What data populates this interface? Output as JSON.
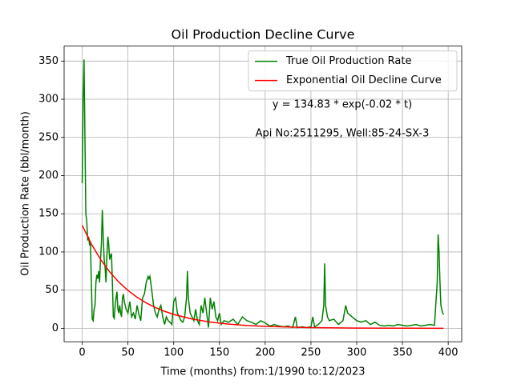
{
  "chart_data": {
    "type": "line",
    "title": "Oil Production Decline Curve",
    "xlabel": "Time (months) from:1/1990 to:12/2023",
    "ylabel": "Oil Production Rate (bbl/month)",
    "xlim": [
      -19.75,
      414.75
    ],
    "xticks": [
      0,
      50,
      100,
      150,
      200,
      250,
      300,
      350,
      400
    ],
    "ylim": [
      -17.6,
      369.6
    ],
    "yticks": [
      0,
      50,
      100,
      150,
      200,
      250,
      300,
      350
    ],
    "grid": true,
    "legend": "upper right",
    "annotations": [
      "y = 134.83 * exp(-0.02 * t)",
      "Api No:2511295, Well:85-24-SX-3"
    ],
    "series": [
      {
        "name": "True Oil Production Rate",
        "color": "#008000",
        "x": [
          0,
          1,
          2,
          3,
          4,
          5,
          6,
          7,
          8,
          9,
          10,
          11,
          12,
          13,
          14,
          15,
          16,
          17,
          18,
          19,
          20,
          21,
          22,
          23,
          24,
          25,
          26,
          27,
          28,
          29,
          30,
          31,
          32,
          33,
          34,
          35,
          36,
          37,
          38,
          39,
          40,
          41,
          42,
          43,
          44,
          45,
          46,
          47,
          48,
          50,
          52,
          54,
          56,
          58,
          60,
          62,
          64,
          66,
          68,
          70,
          72,
          73,
          74,
          76,
          78,
          80,
          82,
          84,
          86,
          88,
          90,
          92,
          94,
          96,
          98,
          100,
          102,
          104,
          106,
          108,
          110,
          112,
          114,
          115,
          116,
          118,
          120,
          122,
          124,
          126,
          128,
          130,
          132,
          134,
          136,
          138,
          140,
          142,
          144,
          146,
          148,
          150,
          152,
          155,
          160,
          165,
          170,
          175,
          180,
          185,
          190,
          195,
          200,
          205,
          210,
          215,
          220,
          225,
          230,
          233,
          235,
          240,
          245,
          250,
          252,
          254,
          258,
          262,
          264,
          265,
          266,
          268,
          270,
          275,
          280,
          285,
          288,
          290,
          295,
          300,
          305,
          310,
          315,
          320,
          325,
          330,
          335,
          340,
          345,
          350,
          355,
          360,
          365,
          370,
          375,
          380,
          385,
          388,
          389,
          390,
          391,
          392,
          394,
          395
        ],
        "values": [
          190,
          300,
          352,
          250,
          150,
          140,
          115,
          120,
          110,
          112,
          60,
          12,
          10,
          25,
          30,
          60,
          70,
          65,
          75,
          60,
          90,
          110,
          155,
          120,
          90,
          80,
          60,
          95,
          120,
          110,
          90,
          95,
          98,
          60,
          15,
          13,
          30,
          40,
          48,
          25,
          20,
          30,
          20,
          15,
          40,
          45,
          35,
          30,
          25,
          20,
          35,
          15,
          20,
          12,
          30,
          18,
          10,
          40,
          45,
          60,
          68,
          65,
          68,
          50,
          30,
          20,
          15,
          25,
          30,
          15,
          5,
          15,
          10,
          8,
          5,
          35,
          40,
          20,
          15,
          10,
          8,
          15,
          40,
          75,
          40,
          20,
          15,
          10,
          25,
          10,
          5,
          30,
          20,
          40,
          20,
          1,
          40,
          25,
          35,
          15,
          10,
          20,
          5,
          10,
          8,
          12,
          5,
          15,
          10,
          8,
          5,
          10,
          7,
          3,
          5,
          3,
          2,
          3,
          1,
          15,
          1,
          2,
          1,
          2,
          15,
          2,
          5,
          10,
          30,
          85,
          30,
          15,
          10,
          12,
          5,
          10,
          30,
          20,
          15,
          10,
          8,
          10,
          5,
          8,
          4,
          3,
          4,
          3,
          5,
          4,
          3,
          4,
          5,
          3,
          4,
          5,
          4,
          60,
          123,
          100,
          60,
          30,
          20,
          18
        ]
      },
      {
        "name": "Exponential Oil Decline Curve",
        "color": "#ff0000",
        "x": [
          0,
          10,
          20,
          30,
          40,
          50,
          60,
          70,
          80,
          90,
          100,
          120,
          140,
          160,
          180,
          200,
          250,
          300,
          350,
          395
        ],
        "values": [
          134.83,
          110.39,
          90.38,
          74.0,
          60.58,
          49.6,
          40.61,
          33.25,
          27.22,
          22.29,
          18.25,
          12.23,
          8.2,
          5.5,
          3.68,
          2.47,
          0.91,
          0.33,
          0.12,
          0.05
        ]
      }
    ]
  }
}
